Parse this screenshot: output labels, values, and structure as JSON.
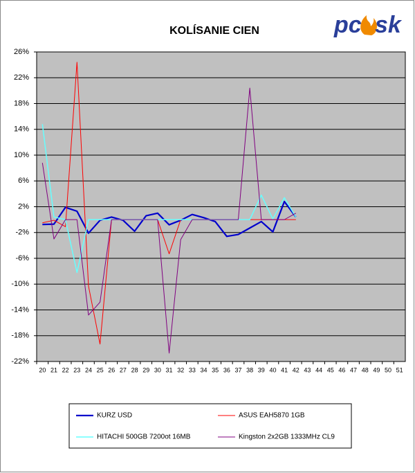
{
  "chart_data": {
    "type": "line",
    "title": "KOLÍSANIE CIEN",
    "logo": [
      "pc",
      "sk"
    ],
    "categories": [
      20,
      21,
      22,
      23,
      24,
      25,
      26,
      27,
      28,
      29,
      30,
      31,
      32,
      33,
      34,
      35,
      36,
      37,
      38,
      39,
      40,
      41,
      42,
      43,
      44,
      45,
      46,
      47,
      48,
      49,
      50,
      51
    ],
    "series": [
      {
        "name": "KURZ USD",
        "color": "#0000cc",
        "width": 2.2,
        "values": [
          -0.75,
          -0.7,
          1.9,
          1.3,
          -2.1,
          -0.1,
          0.4,
          -0.1,
          -1.8,
          0.6,
          1.0,
          -0.8,
          -0.1,
          0.8,
          0.3,
          -0.3,
          -2.6,
          -2.3,
          -1.3,
          -0.3,
          -1.9,
          2.8,
          0.4,
          null,
          null,
          null,
          null,
          null,
          null,
          null,
          null,
          null
        ]
      },
      {
        "name": "ASUS EAH5870 1GB",
        "color": "#ff0000",
        "width": 1,
        "values": [
          -0.5,
          -0.1,
          -1.1,
          24.4,
          -10.3,
          -19.3,
          0,
          0,
          0,
          0,
          0,
          -5.3,
          0,
          0,
          0,
          0,
          0,
          0,
          0,
          0,
          0,
          0,
          0,
          null,
          null,
          null,
          null,
          null,
          null,
          null,
          null,
          null
        ]
      },
      {
        "name": "HITACHI 500GB 7200ot 16MB",
        "color": "#66ffff",
        "width": 1.5,
        "values": [
          14.8,
          0.4,
          0,
          -8.2,
          0,
          0,
          0,
          0,
          0,
          0,
          0,
          0,
          0,
          0,
          0,
          0,
          0,
          0,
          0,
          3.8,
          0.1,
          3.4,
          0.4,
          null,
          null,
          null,
          null,
          null,
          null,
          null,
          null,
          null
        ]
      },
      {
        "name": "Kingston 2x2GB 1333MHz CL9",
        "color": "#800080",
        "width": 1,
        "values": [
          8.8,
          -3.0,
          0,
          0,
          -14.8,
          -12.8,
          0,
          0,
          0,
          0,
          0,
          -20.7,
          -3.1,
          0,
          0,
          0,
          0,
          0,
          20.4,
          0,
          0,
          0,
          1.0,
          null,
          null,
          null,
          null,
          null,
          null,
          null,
          null,
          null
        ]
      }
    ],
    "ylim": [
      -22,
      26
    ],
    "yticks": [
      {
        "value": -22,
        "label": "-22%"
      },
      {
        "value": -18,
        "label": "-18%"
      },
      {
        "value": -14,
        "label": "-14%"
      },
      {
        "value": -10,
        "label": "-10%"
      },
      {
        "value": -6,
        "label": "-6%"
      },
      {
        "value": -2,
        "label": "-2%"
      },
      {
        "value": 2,
        "label": "2%"
      },
      {
        "value": 6,
        "label": "6%"
      },
      {
        "value": 10,
        "label": "10%"
      },
      {
        "value": 14,
        "label": "14%"
      },
      {
        "value": 18,
        "label": "18%"
      },
      {
        "value": 22,
        "label": "22%"
      },
      {
        "value": 26,
        "label": "26%"
      }
    ],
    "grid": true,
    "plot_background": "#c0c0c0",
    "legend": "bottom"
  }
}
